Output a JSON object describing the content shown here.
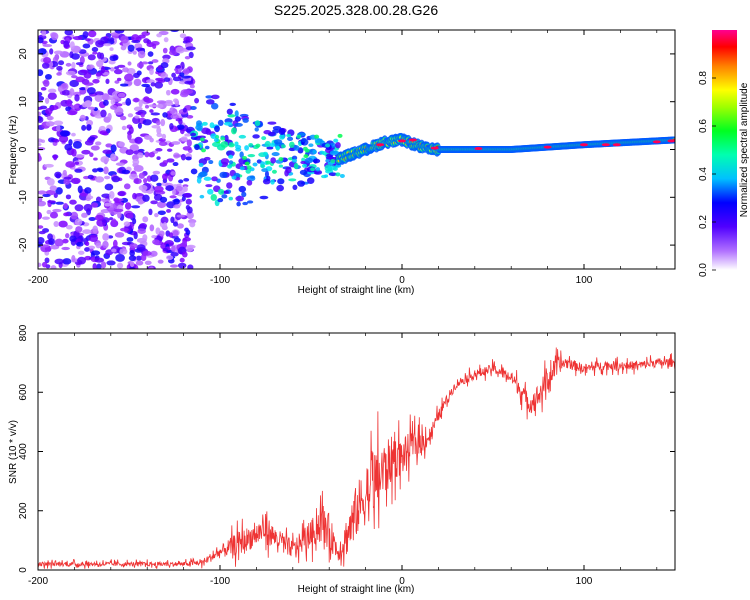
{
  "title": "S225.2025.328.00.28.G26",
  "chart_data": [
    {
      "type": "heatmap",
      "title": "S225.2025.328.00.28.G26",
      "xlabel": "Height of straight line (km)",
      "ylabel": "Frequency (Hz)",
      "xlim": [
        -200,
        150
      ],
      "ylim": [
        -25,
        25
      ],
      "x_ticks": [
        -200,
        -100,
        0,
        100
      ],
      "y_ticks": [
        20,
        10,
        0,
        -10,
        -20
      ],
      "colorbar": {
        "label": "Normalized spectral amplitude",
        "range": [
          0,
          1
        ],
        "ticks": [
          "0.0",
          "0.2",
          "0.4",
          "0.6",
          "0.8"
        ],
        "colormap": [
          "#ffffff",
          "#8000ff",
          "#0000ff",
          "#00e0ff",
          "#00ff40",
          "#ffff00",
          "#ff8000",
          "#ff0000",
          "#ff0090"
        ]
      },
      "regions": [
        {
          "name": "noise",
          "x_range": [
            -200,
            -115
          ],
          "freq_range": [
            -25,
            25
          ],
          "amplitude": [
            0.05,
            0.25
          ]
        },
        {
          "name": "onset",
          "x_range": [
            -115,
            -35
          ],
          "freq_range": [
            -14,
            11
          ],
          "amplitude": [
            0.15,
            0.45
          ]
        },
        {
          "name": "tracking",
          "x_range": [
            -35,
            150
          ],
          "freq_center": [
            [
              -35,
              -2
            ],
            [
              -20,
              0
            ],
            [
              -10,
              1.5
            ],
            [
              0,
              2
            ],
            [
              15,
              0
            ],
            [
              60,
              0
            ],
            [
              100,
              1
            ],
            [
              150,
              2
            ]
          ],
          "amplitude": [
            0.4,
            1.0
          ]
        }
      ]
    },
    {
      "type": "line",
      "xlabel": "Height of straight line (km)",
      "ylabel": "SNR (10 * v/v)",
      "xlim": [
        -200,
        150
      ],
      "ylim": [
        0,
        800
      ],
      "x_ticks": [
        -200,
        -100,
        0,
        100
      ],
      "y_ticks": [
        0,
        200,
        400,
        600,
        800
      ],
      "series": [
        {
          "name": "SNR",
          "color": "#ee3333",
          "x": [
            -200,
            -150,
            -120,
            -110,
            -100,
            -90,
            -80,
            -75,
            -70,
            -60,
            -50,
            -45,
            -40,
            -35,
            -30,
            -25,
            -20,
            -15,
            -10,
            -5,
            0,
            5,
            10,
            15,
            20,
            25,
            30,
            40,
            50,
            60,
            65,
            70,
            75,
            80,
            85,
            90,
            100,
            110,
            120,
            130,
            140,
            150
          ],
          "values": [
            20,
            20,
            20,
            25,
            60,
            90,
            120,
            140,
            110,
            70,
            120,
            160,
            130,
            60,
            120,
            200,
            250,
            300,
            330,
            380,
            380,
            420,
            430,
            450,
            520,
            580,
            630,
            660,
            680,
            650,
            610,
            560,
            590,
            640,
            690,
            700,
            680,
            690,
            690,
            690,
            700,
            700
          ],
          "spread": [
            15,
            15,
            15,
            20,
            40,
            80,
            80,
            100,
            70,
            60,
            90,
            130,
            120,
            60,
            140,
            180,
            200,
            220,
            200,
            150,
            120,
            100,
            80,
            60,
            40,
            30,
            30,
            30,
            30,
            40,
            60,
            60,
            80,
            80,
            60,
            40,
            30,
            30,
            30,
            30,
            30,
            30
          ]
        }
      ]
    }
  ]
}
